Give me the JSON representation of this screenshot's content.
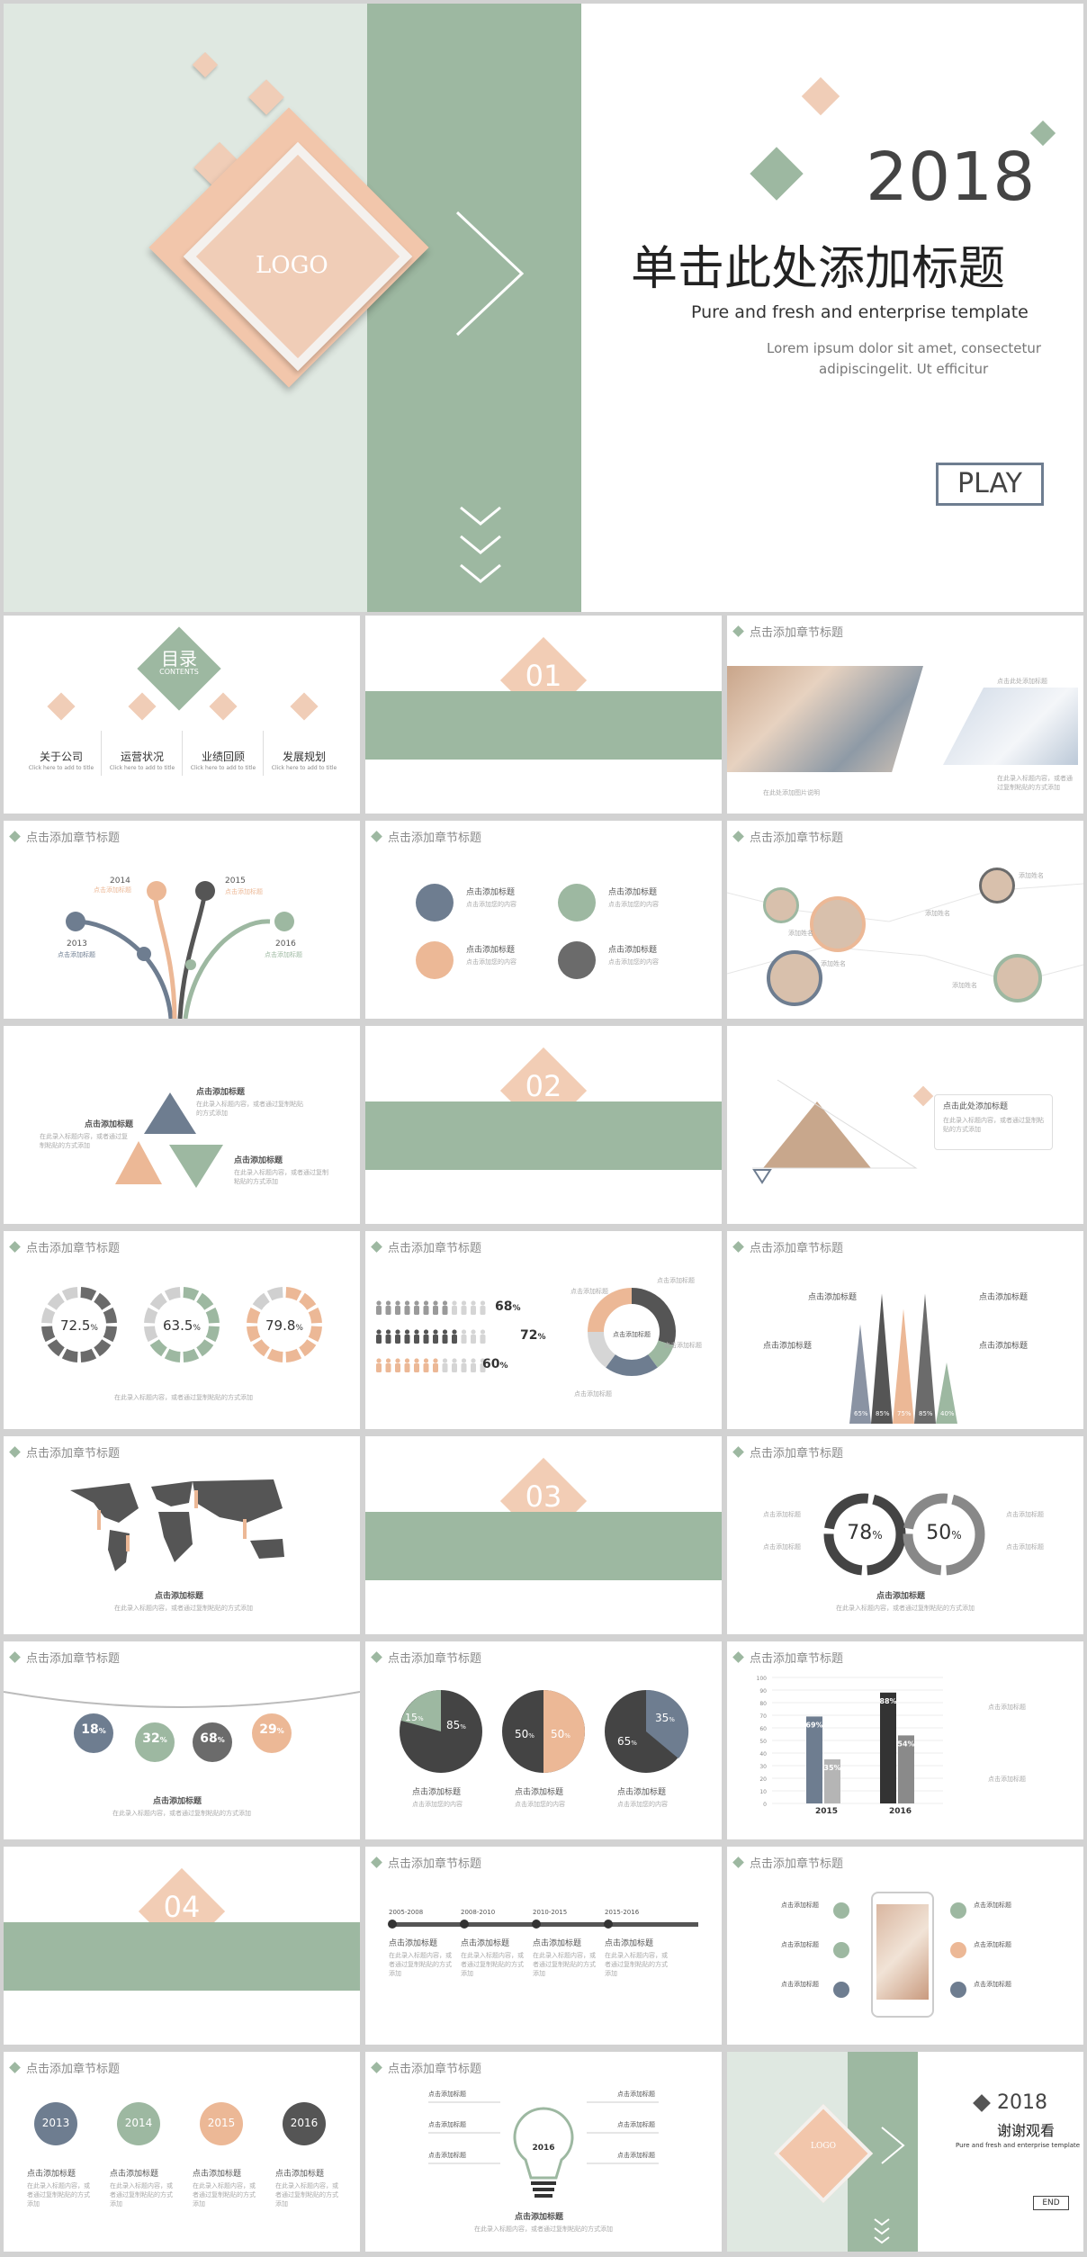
{
  "cover": {
    "logo": "LOGO",
    "year": "2018",
    "title": "单击此处添加标题",
    "subtitle": "Pure and fresh and enterprise template",
    "desc_line1": "Lorem ipsum dolor sit amet, consectetur",
    "desc_line2": "adipiscingelit. Ut efficitur",
    "play": "PLAY"
  },
  "header": "点击添加章节标题",
  "contents": {
    "title": "目录",
    "sub": "CONTENTS",
    "items": [
      {
        "label": "关于公司",
        "sub": "Click here to add to title"
      },
      {
        "label": "运营状况",
        "sub": "Click here to add to title"
      },
      {
        "label": "业绩回顾",
        "sub": "Click here to add to title"
      },
      {
        "label": "发展规划",
        "sub": "Click here to add to title"
      }
    ]
  },
  "sections": [
    "01",
    "02",
    "03",
    "04"
  ],
  "placeholder": {
    "title": "点击添加标题",
    "content": "点击添加您的内容",
    "name": "添加姓名",
    "position": "职位",
    "body": "在此录入标题内容，或者通过复制粘贴的方式添加"
  },
  "photo_slide": {
    "caption_left": "在此处添加图片说明",
    "caption_right": "点击此处添加标题"
  },
  "years_fan": [
    "2013",
    "2014",
    "2015",
    "2016"
  ],
  "triangle_slide": {
    "title": "点击此处添加标题"
  },
  "donuts": [
    {
      "label": "72.5",
      "unit": "%",
      "value": 72.5,
      "color": "#6b6b6b"
    },
    {
      "label": "63.5",
      "unit": "%",
      "value": 63.5,
      "color": "#9db8a1"
    },
    {
      "label": "79.8",
      "unit": "%",
      "value": 79.8,
      "color": "#ecb896"
    }
  ],
  "people_rows": [
    {
      "pct": "68",
      "unit": "%",
      "value": 68
    },
    {
      "pct": "72",
      "unit": "%",
      "value": 72
    },
    {
      "pct": "60",
      "unit": "%",
      "value": 60
    }
  ],
  "center_label": "点击添加标题",
  "spikes": {
    "labels": [
      "65%",
      "85%",
      "75%",
      "85%",
      "40%"
    ],
    "values": [
      65,
      85,
      75,
      85,
      40
    ]
  },
  "cycle": [
    {
      "value": "78",
      "unit": "%"
    },
    {
      "value": "50",
      "unit": "%"
    }
  ],
  "drops": [
    {
      "value": "18",
      "unit": "%",
      "color": "#6e7d90"
    },
    {
      "value": "32",
      "unit": "%",
      "color": "#9db8a1"
    },
    {
      "value": "68",
      "unit": "%",
      "color": "#6b6b6b"
    },
    {
      "value": "29",
      "unit": "%",
      "color": "#ecb896"
    }
  ],
  "pies": [
    {
      "a": "15",
      "b": "85",
      "unit": "%"
    },
    {
      "a": "50",
      "b": "50",
      "unit": "%"
    },
    {
      "a": "65",
      "b": "35",
      "unit": "%"
    }
  ],
  "bar_chart": {
    "type": "bar",
    "categories": [
      "2015",
      "2016"
    ],
    "series_values": [
      69,
      35,
      88,
      54
    ],
    "labels": [
      "69",
      "35",
      "88",
      "54"
    ],
    "unit": "%",
    "yticks": [
      "100",
      "90",
      "80",
      "70",
      "60",
      "50",
      "40",
      "30",
      "20",
      "10",
      "0"
    ]
  },
  "timeline": [
    "2005-2008",
    "2008-2010",
    "2010-2015",
    "2015-2016"
  ],
  "circles_years": [
    "2013",
    "2014",
    "2015",
    "2016"
  ],
  "bulb_year": "2016",
  "ending": {
    "year": "2018",
    "title": "谢谢观看",
    "subtitle": "Pure and fresh and enterprise template",
    "end": "END",
    "logo": "LOGO"
  }
}
